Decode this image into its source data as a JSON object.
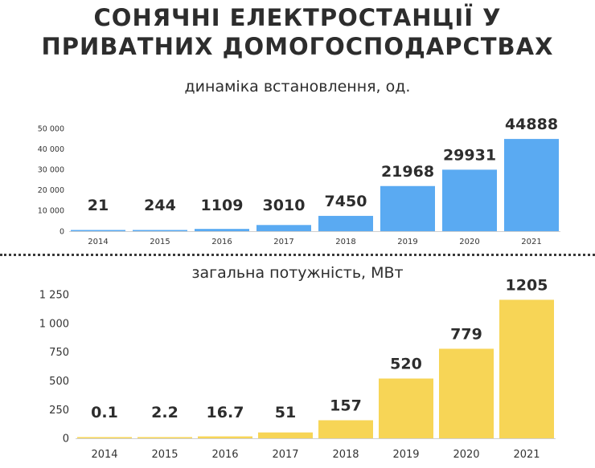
{
  "title": {
    "line1": "СОНЯЧНІ ЕЛЕКТРОСТАНЦІЇ У",
    "line2": "ПРИВАТНИХ ДОМОГОСПОДАРСТВАХ"
  },
  "colors": {
    "installations_bar": "#5aaaf2",
    "capacity_bar": "#f7d556",
    "text": "#2d2d2d"
  },
  "chart_data": [
    {
      "type": "bar",
      "title": "динаміка встановлення, од.",
      "categories": [
        "2014",
        "2015",
        "2016",
        "2017",
        "2018",
        "2019",
        "2020",
        "2021"
      ],
      "values": [
        21,
        244,
        1109,
        3010,
        7450,
        21968,
        29931,
        44888
      ],
      "data_labels": [
        "21",
        "244",
        "1109",
        "3010",
        "7450",
        "21968",
        "29931",
        "44888"
      ],
      "y_ticks": [
        0,
        10000,
        20000,
        30000,
        40000,
        50000
      ],
      "y_tick_labels": [
        "0",
        "10 000",
        "20 000",
        "30 000",
        "40 000",
        "50 000"
      ],
      "ylim": [
        0,
        50000
      ],
      "grid": false,
      "legend": "none"
    },
    {
      "type": "bar",
      "title": "загальна потужність, МВт",
      "categories": [
        "2014",
        "2015",
        "2016",
        "2017",
        "2018",
        "2019",
        "2020",
        "2021"
      ],
      "values": [
        0.1,
        2.2,
        16.7,
        51,
        157,
        520,
        779,
        1205
      ],
      "data_labels": [
        "0.1",
        "2.2",
        "16.7",
        "51",
        "157",
        "520",
        "779",
        "1205"
      ],
      "y_ticks": [
        0,
        250,
        500,
        750,
        1000,
        1250
      ],
      "y_tick_labels": [
        "0",
        "250",
        "500",
        "750",
        "1 000",
        "1 250"
      ],
      "ylim": [
        0,
        1250
      ],
      "grid": false,
      "legend": "none"
    }
  ]
}
